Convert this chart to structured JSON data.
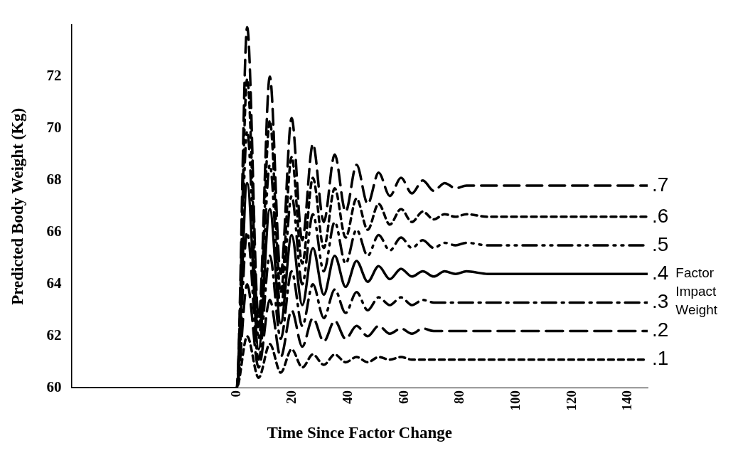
{
  "chart_data": {
    "type": "line",
    "xlabel": "Time Since Factor Change",
    "ylabel": "Predicted Body Weight (Kg)",
    "legend_title": "Factor Impact Weight",
    "x": [
      -59,
      0,
      3.8,
      7.9,
      11.9,
      15.8,
      19.7,
      23.5,
      27.3,
      31.2,
      35.1,
      39,
      42.9,
      46.9,
      50.8,
      54.8,
      58.8,
      62.7,
      66.6,
      70.5,
      74.4,
      78.3,
      82.2,
      90,
      147
    ],
    "xlim": [
      -59,
      147
    ],
    "xticks": [
      0,
      20,
      40,
      60,
      80,
      100,
      120,
      140
    ],
    "ylim": [
      60,
      74
    ],
    "yticks": [
      60,
      62,
      64,
      66,
      68,
      70,
      72
    ],
    "grid": false,
    "legend": false,
    "marker": "none",
    "series": [
      {
        "name": ".7",
        "color": "#000000",
        "line_style": "dashed",
        "values": [
          60,
          60,
          73.9,
          62.7,
          72.0,
          64.4,
          70.4,
          65.7,
          69.4,
          66.4,
          69.0,
          66.8,
          68.6,
          67.1,
          68.3,
          67.4,
          68.1,
          67.5,
          68.0,
          67.6,
          67.9,
          67.7,
          67.8,
          67.8,
          67.8
        ]
      },
      {
        "name": ".6",
        "color": "#000000",
        "line_style": "dashed",
        "values": [
          60,
          60,
          71.9,
          62.3,
          70.3,
          63.7,
          68.9,
          64.8,
          68.1,
          65.4,
          67.7,
          65.8,
          67.3,
          66.1,
          67.1,
          66.3,
          66.9,
          66.4,
          66.8,
          66.5,
          66.7,
          66.6,
          66.7,
          66.6,
          66.6
        ]
      },
      {
        "name": ".5",
        "color": "#000000",
        "line_style": "dashed",
        "values": [
          60,
          60,
          69.9,
          61.9,
          68.6,
          63.1,
          67.4,
          64.0,
          66.7,
          64.5,
          66.4,
          64.8,
          66.1,
          65.1,
          65.9,
          65.3,
          65.8,
          65.4,
          65.7,
          65.4,
          65.6,
          65.5,
          65.6,
          65.5,
          65.5
        ]
      },
      {
        "name": ".4",
        "color": "#000000",
        "line_style": "solid",
        "values": [
          60,
          60,
          67.9,
          61.5,
          66.9,
          62.5,
          65.9,
          63.2,
          65.4,
          63.6,
          65.1,
          63.9,
          64.9,
          64.1,
          64.7,
          64.2,
          64.6,
          64.3,
          64.5,
          64.3,
          64.5,
          64.4,
          64.5,
          64.4,
          64.4
        ]
      },
      {
        "name": ".3",
        "color": "#000000",
        "line_style": "dashed",
        "values": [
          60,
          60,
          66.0,
          61.1,
          65.1,
          61.9,
          64.5,
          62.4,
          64.0,
          62.7,
          63.8,
          62.9,
          63.7,
          63.0,
          63.5,
          63.2,
          63.5,
          63.2,
          63.4,
          63.3,
          63.3,
          63.3,
          63.3,
          63.3,
          63.3
        ]
      },
      {
        "name": ".2",
        "color": "#000000",
        "line_style": "dashed",
        "values": [
          60,
          60,
          64.0,
          60.8,
          63.4,
          61.2,
          63.0,
          61.6,
          62.7,
          61.8,
          62.6,
          61.9,
          62.4,
          62.0,
          62.4,
          62.1,
          62.3,
          62.1,
          62.3,
          62.2,
          62.2,
          62.2,
          62.2,
          62.2,
          62.2
        ]
      },
      {
        "name": ".1",
        "color": "#000000",
        "line_style": "dashed",
        "values": [
          60,
          60,
          62.0,
          60.4,
          61.7,
          60.6,
          61.5,
          60.8,
          61.3,
          60.9,
          61.3,
          61.0,
          61.2,
          61.0,
          61.2,
          61.1,
          61.2,
          61.1,
          61.1,
          61.1,
          61.1,
          61.1,
          61.1,
          61.1,
          61.1
        ]
      }
    ]
  }
}
